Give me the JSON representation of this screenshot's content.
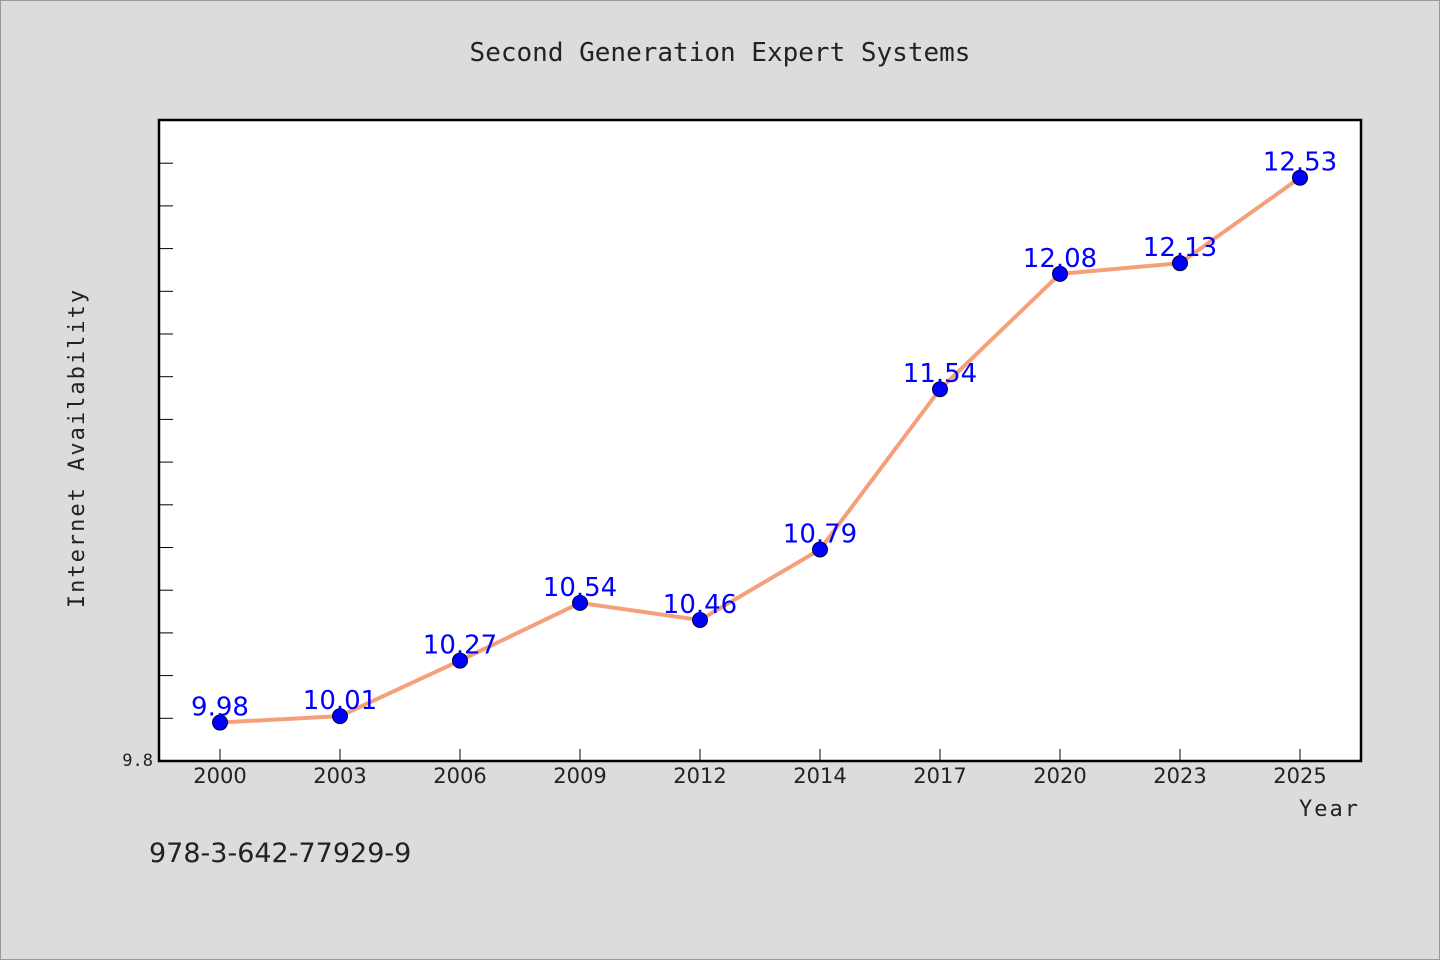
{
  "chart_data": {
    "type": "line",
    "title": "Second Generation Expert Systems",
    "xlabel": "Year",
    "ylabel": "Internet Availability",
    "categories": [
      "2000",
      "2003",
      "2006",
      "2009",
      "2012",
      "2014",
      "2017",
      "2020",
      "2023",
      "2025"
    ],
    "series": [
      {
        "values": [
          9.98,
          10.01,
          10.27,
          10.54,
          10.46,
          10.79,
          11.54,
          12.08,
          12.13,
          12.53
        ]
      }
    ],
    "ylim": [
      9.8,
      12.8
    ],
    "yticks": [
      9.8
    ],
    "ytick_labels": [
      "9.8"
    ],
    "grid": false,
    "legend": "none",
    "line_color": "#f4a07a",
    "marker_color": "#0000ff",
    "label_color": "#0000ff"
  },
  "footer": {
    "isbn": "978-3-642-77929-9"
  }
}
